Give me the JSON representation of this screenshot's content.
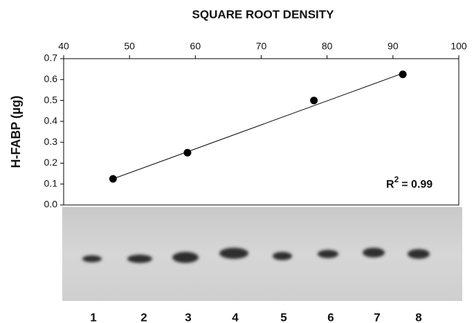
{
  "chart_data": {
    "type": "scatter",
    "title": "SQUARE ROOT DENSITY",
    "y_label": "H-FABP (µg)",
    "x": [
      47.5,
      58.8,
      78,
      91.5
    ],
    "values": [
      0.125,
      0.25,
      0.5,
      0.625
    ],
    "color": "#000000",
    "trend_line": {
      "x": [
        47.5,
        91.5
      ],
      "y": [
        0.125,
        0.63
      ]
    },
    "annotation": [
      "R",
      "2",
      "= 0.99"
    ],
    "xlim": [
      40,
      100
    ],
    "xticks": [
      40,
      50,
      60,
      70,
      80,
      90,
      100
    ],
    "ylim": [
      0,
      0.7
    ],
    "yticks": [
      {
        "value": 0,
        "label": "0.0"
      },
      0.1,
      0.2,
      0.3,
      0.4,
      0.5,
      0.6,
      0.7
    ],
    "grid": false,
    "lanes": [
      "1",
      "2",
      "3",
      "4",
      "5",
      "6",
      "7",
      "8"
    ]
  }
}
